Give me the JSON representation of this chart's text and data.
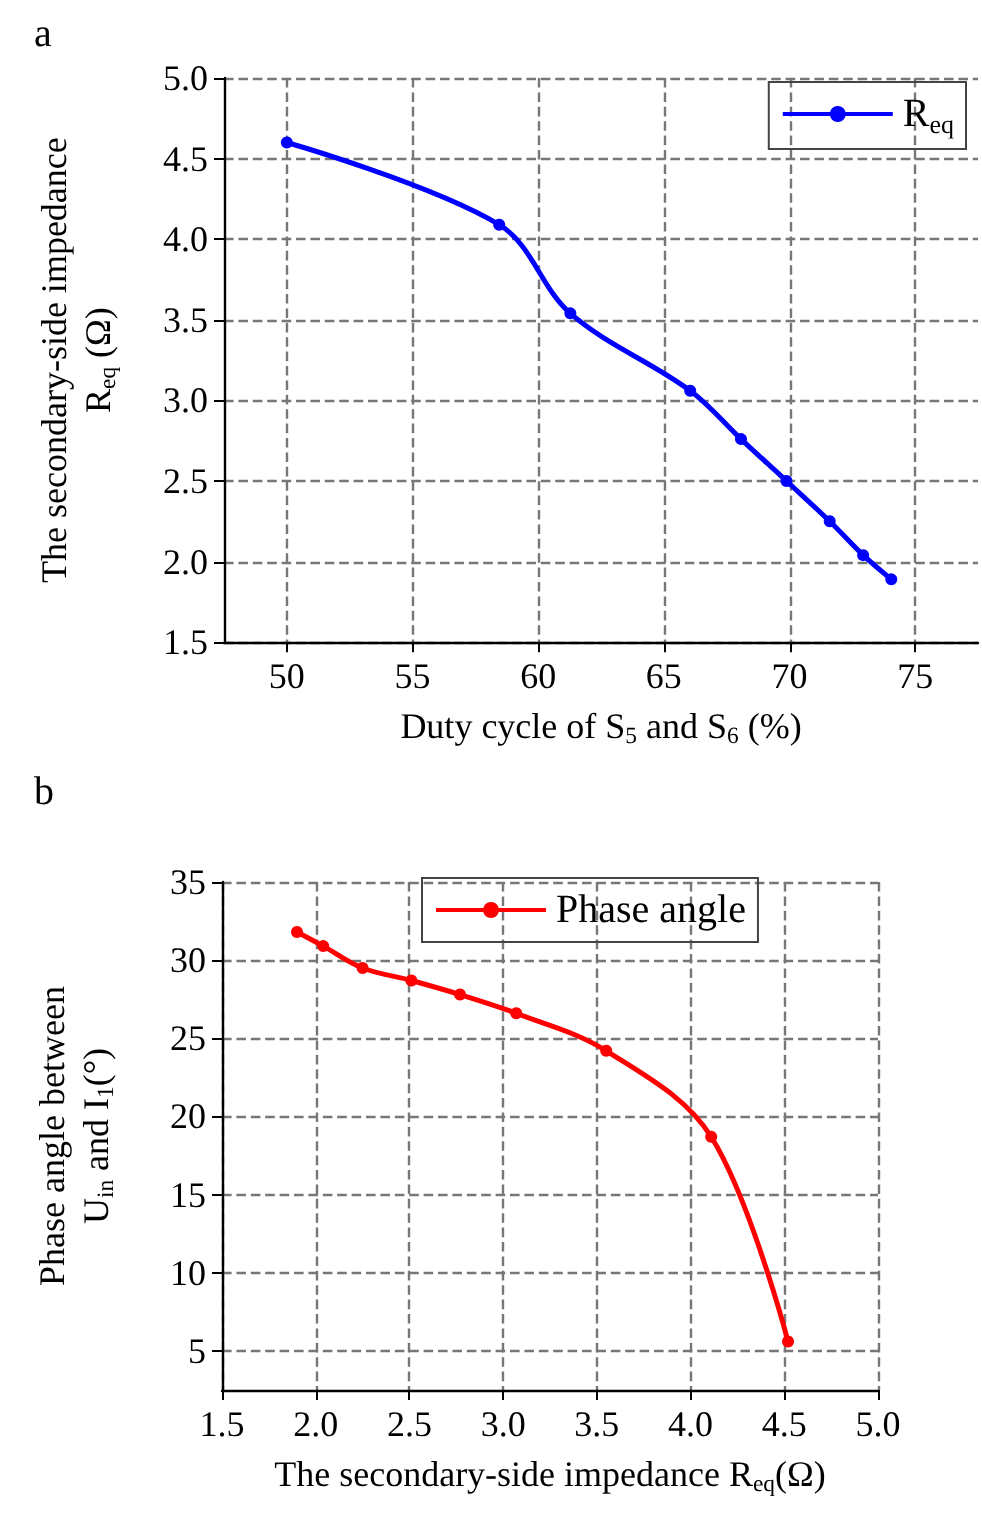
{
  "chart_data": [
    {
      "type": "line",
      "title": "a",
      "xlabel": "Duty cycle of S$_{5}$ and S$_{6}$ (%)",
      "ylabel": "The secondary-side impedance\nR$_{eq}$ (Ω)",
      "x": [
        50,
        58.45,
        61.28,
        66.05,
        68.07,
        69.88,
        71.6,
        72.93,
        74.05
      ],
      "series": [
        {
          "name": "R$_{eq}$",
          "color": "#0000ff",
          "values": [
            4.6,
            4.09,
            3.54,
            3.06,
            2.76,
            2.5,
            2.25,
            2.04,
            1.89
          ]
        }
      ],
      "xlim": [
        47.5,
        77.5
      ],
      "xticks": [
        50,
        55,
        60,
        65,
        70,
        75
      ],
      "ylim": [
        1.5,
        5.0
      ],
      "yticks": [
        {
          "value": 1.5,
          "label": "1.5"
        },
        {
          "value": 2,
          "label": "2.0"
        },
        {
          "value": 2.5,
          "label": "2.5"
        },
        {
          "value": 3,
          "label": "3.0"
        },
        {
          "value": 3.5,
          "label": "3.5"
        },
        {
          "value": 4,
          "label": "4.0"
        },
        {
          "value": 4.5,
          "label": "4.5"
        },
        {
          "value": 5,
          "label": "5.0"
        }
      ],
      "grid": true,
      "legend": "top right",
      "marker": "circle",
      "line_style": "solid"
    },
    {
      "type": "line",
      "title": "b",
      "xlabel": "The secondary-side impedance R$_{eq}$(Ω)",
      "ylabel": "Phase angle between\nU$_{in}$ and I$_{1}$(°)",
      "x": [
        1.9,
        2.04,
        2.25,
        2.51,
        2.77,
        3.07,
        3.55,
        4.11,
        4.52
      ],
      "series": [
        {
          "name": "Phase angle",
          "color": "#ff0000",
          "values": [
            31.8,
            30.9,
            29.5,
            28.7,
            27.8,
            26.6,
            24.2,
            18.7,
            5.6
          ]
        }
      ],
      "xlim": [
        1.5,
        5.0
      ],
      "xticks": [
        {
          "value": 1.5,
          "label": "1.5"
        },
        {
          "value": 2,
          "label": "2.0"
        },
        {
          "value": 2.5,
          "label": "2.5"
        },
        {
          "value": 3,
          "label": "3.0"
        },
        {
          "value": 3.5,
          "label": "3.5"
        },
        {
          "value": 4,
          "label": "4.0"
        },
        {
          "value": 4.5,
          "label": "4.5"
        },
        {
          "value": 5,
          "label": "5.0"
        }
      ],
      "ylim": [
        2.5,
        35
      ],
      "yticks": [
        5,
        10,
        15,
        20,
        25,
        30,
        35
      ],
      "grid": true,
      "legend": "top",
      "marker": "circle",
      "line_style": "solid"
    }
  ]
}
